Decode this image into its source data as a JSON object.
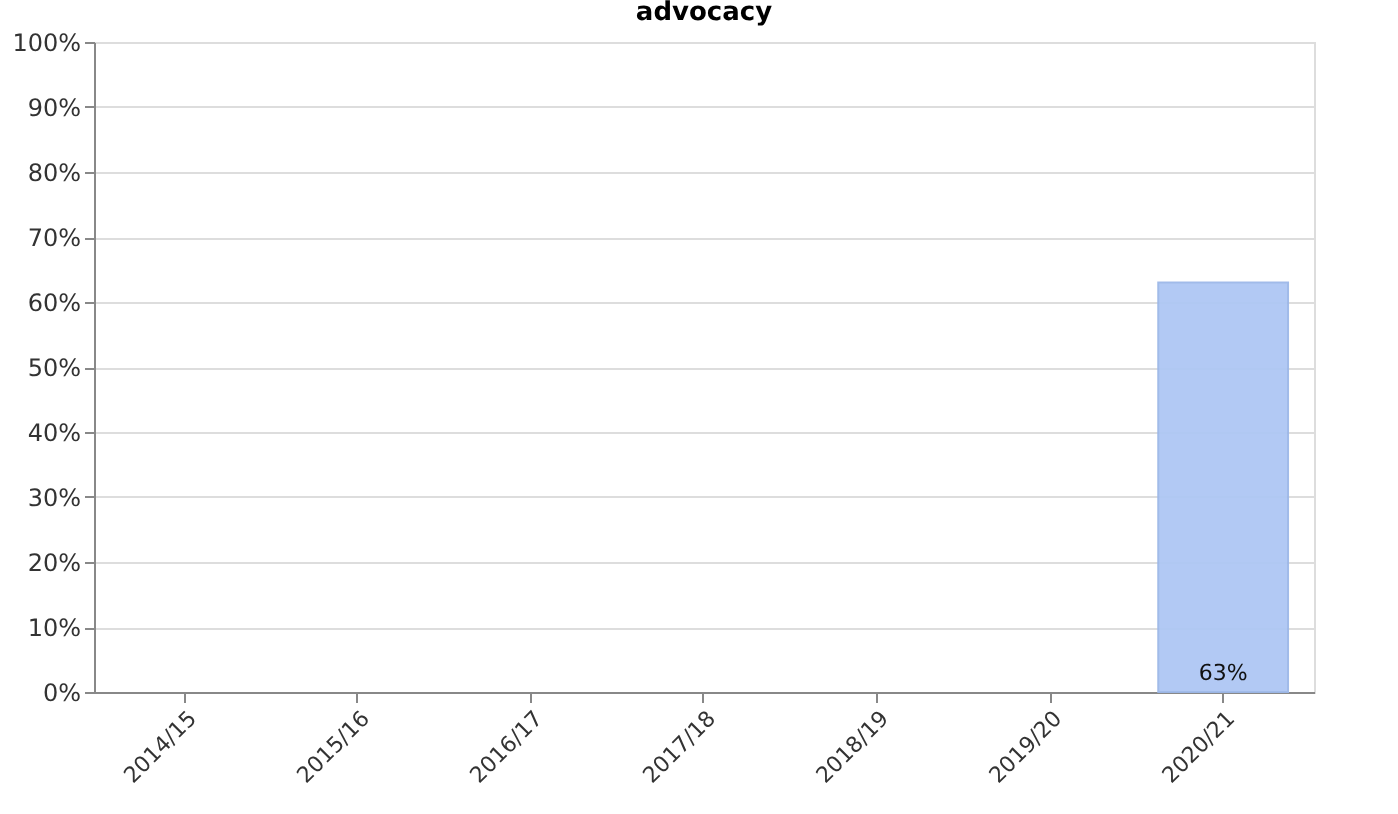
{
  "chart_data": {
    "type": "bar",
    "title": "advocacy",
    "categories": [
      "2014/15",
      "2015/16",
      "2016/17",
      "2017/18",
      "2018/19",
      "2019/20",
      "2020/21"
    ],
    "values": [
      null,
      null,
      null,
      null,
      null,
      null,
      63
    ],
    "value_labels": [
      null,
      null,
      null,
      null,
      null,
      null,
      "63%"
    ],
    "color": "#aec7f4",
    "ylim": [
      0,
      100
    ],
    "yticks": [
      {
        "value": 0,
        "label": "0%"
      },
      {
        "value": 10,
        "label": "10%"
      },
      {
        "value": 20,
        "label": "20%"
      },
      {
        "value": 30,
        "label": "30%"
      },
      {
        "value": 40,
        "label": "40%"
      },
      {
        "value": 50,
        "label": "50%"
      },
      {
        "value": 60,
        "label": "60%"
      },
      {
        "value": 70,
        "label": "70%"
      },
      {
        "value": 80,
        "label": "80%"
      },
      {
        "value": 90,
        "label": "90%"
      },
      {
        "value": 100,
        "label": "100%"
      }
    ],
    "grid": "y"
  }
}
